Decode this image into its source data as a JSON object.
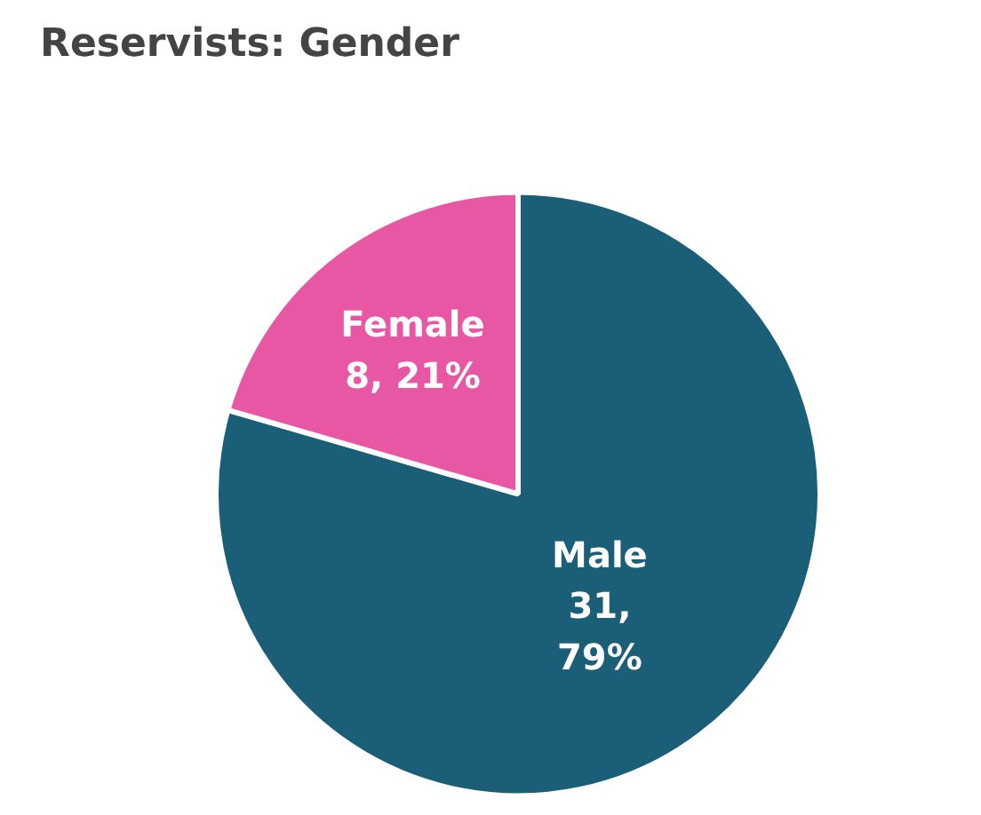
{
  "chart_data": {
    "type": "pie",
    "title": "Reservists: Gender",
    "categories": [
      "Male",
      "Female"
    ],
    "values": [
      31,
      8
    ],
    "colors": [
      "#1b5e78",
      "#e857a4"
    ],
    "value_labels": [
      "31,\n79%",
      "8, 21%"
    ]
  }
}
